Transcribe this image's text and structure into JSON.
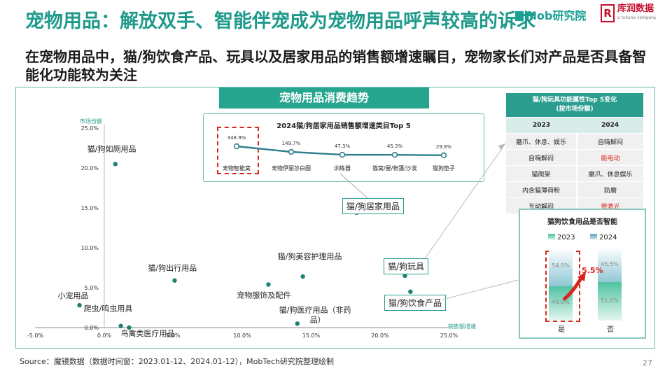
{
  "header": {
    "title": "宠物用品：解放双手、智能伴宠成为宠物用品呼声较高的诉求",
    "subtitle": "在宠物用品中，猫/狗饮食产品、玩具以及居家用品的销售额增速瞩目，宠物家长们对产品是否具备智能化功能较为关注",
    "logo_mob": "Mob研究院",
    "logo_kr": "库润数据",
    "logo_kr_sub": "a tokuno company"
  },
  "banner": "宠物用品消费趋势",
  "footer": {
    "source": "Source：魔镜数据（数据时间窗：2023.01-12、2024.01-12），MobTech研究院整理绘制",
    "page": "27"
  },
  "callouts": {
    "home": "猫/狗居家用品",
    "toy": "猫/狗玩具",
    "food": "猫/狗饮食产品"
  },
  "colors": {
    "accent": "#2a9d8f",
    "title": "#1e9a8a",
    "highlight": "#d9261c",
    "bar_2023": "#4fc3a1",
    "bar_2024": "#5ba3b5"
  },
  "chart_data": [
    {
      "type": "scatter",
      "title": "",
      "xlabel": "销售额增速",
      "ylabel": "市场份额",
      "xlim": [
        -5.0,
        25.0
      ],
      "ylim": [
        0.0,
        25.0
      ],
      "x_ticks": [
        "-5.0%",
        "0.0%",
        "5.0%",
        "10.0%",
        "15.0%",
        "20.0%",
        "25.0%"
      ],
      "y_ticks": [
        "0.0%",
        "5.0%",
        "10.0%",
        "15.0%",
        "20.0%",
        "25.0%"
      ],
      "points": [
        {
          "label": "猫/狗如厕用品",
          "x": 0.8,
          "y": 20.5
        },
        {
          "label": "猫/狗出行用品",
          "x": 5.1,
          "y": 5.9
        },
        {
          "label": "小宠用品",
          "x": -1.8,
          "y": 2.8
        },
        {
          "label": "爬虫/鸣虫用具",
          "x": 1.2,
          "y": 0.2
        },
        {
          "label": "鸟禽类医疗用品",
          "x": 1.8,
          "y": 0.0
        },
        {
          "label": "宠物服饰及配件",
          "x": 11.9,
          "y": 5.4
        },
        {
          "label": "猫/狗美容护理用品",
          "x": 14.4,
          "y": 6.4
        },
        {
          "label": "猫/狗医疗用品（非药品）",
          "x": 14.0,
          "y": 0.5
        },
        {
          "label": "猫/狗居家用品",
          "x": 18.3,
          "y": 14.4
        },
        {
          "label": "猫/狗玩具",
          "x": 21.8,
          "y": 6.5
        },
        {
          "label": "猫/狗饮食产品",
          "x": 22.2,
          "y": 4.5
        }
      ]
    },
    {
      "type": "line",
      "title": "2024猫/狗居家用品销售额增速类目Top 5",
      "categories": [
        "宠物智能窝",
        "宠物伊丽莎白圈",
        "训练器",
        "猫窝/屋/帐篷/沙发",
        "猫狗垫子"
      ],
      "values": [
        348.9,
        149.7,
        47.3,
        45.3,
        29.8
      ],
      "value_labels": [
        "348.9%",
        "149.7%",
        "47.3%",
        "45.3%",
        "29.8%"
      ]
    },
    {
      "type": "table",
      "title": "猫/狗玩具功能属性Top 5变化",
      "subtitle": "(按市场份额)",
      "columns": [
        "2023",
        "2024"
      ],
      "rows": [
        [
          "磨爪、休息、娱乐",
          "自嗨解闷"
        ],
        [
          "自嗨解闷",
          "能电动"
        ],
        [
          "猫爬架",
          "磨爪、休息娱乐"
        ],
        [
          "内含猫薄荷粉",
          "防磨"
        ],
        [
          "互动解闷",
          "带激光"
        ]
      ],
      "highlighted_2024": [
        "能电动",
        "带激光"
      ]
    },
    {
      "type": "bar",
      "title": "猫狗饮食用品是否智能",
      "categories": [
        "是",
        "否"
      ],
      "series": [
        {
          "name": "2023",
          "values": [
            49.0,
            51.0
          ],
          "labels": [
            "49.0%",
            "51.0%"
          ]
        },
        {
          "name": "2024",
          "values": [
            54.5,
            45.5
          ],
          "labels": [
            "54.5%",
            "45.5%"
          ]
        }
      ],
      "annotation": "5.5%"
    }
  ]
}
